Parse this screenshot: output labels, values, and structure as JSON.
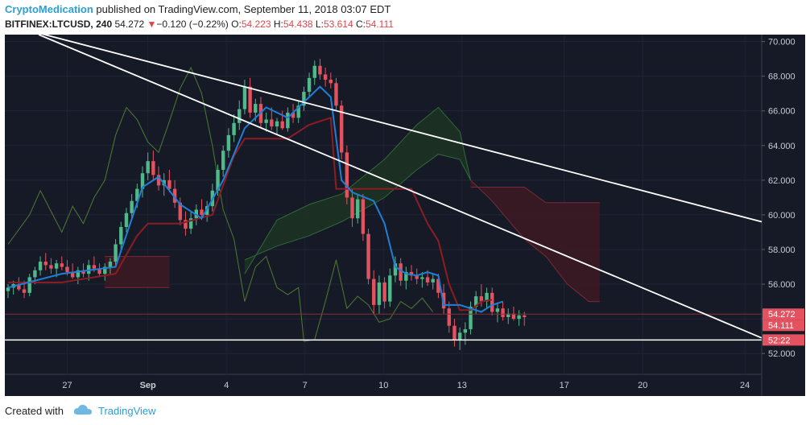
{
  "header": {
    "brand": "CryptoMedication",
    "published_text": "published on TradingView.com, September 11, 2018 03:07 EDT",
    "symbol": "BITFINEX:LTCUSD, 240",
    "last": "54.272",
    "arrow": "▼",
    "change": "−0.120 (−0.22%)",
    "open_label": "O:",
    "open": "54.223",
    "high_label": "H:",
    "high": "54.438",
    "low_label": "L:",
    "low": "53.614",
    "close_label": "C:",
    "close": "54.111"
  },
  "footer": {
    "created_with": "Created with",
    "brand": "TradingView"
  },
  "colors": {
    "background": "#161a27",
    "up": "#4fb98a",
    "down": "#e4525f",
    "base_line": "#1f7fd6",
    "conversion_line": "#8c1d22",
    "cloud_bull": "#1c3322",
    "cloud_bear": "#3b1a24",
    "lagging": "#4f7a32",
    "axis_text": "#c9ccd4",
    "trendline": "#ffffff"
  },
  "chart_data": {
    "type": "candlestick",
    "symbol": "BITFINEX:LTCUSD",
    "timeframe": "240",
    "x_ticks": [
      "27",
      "Sep",
      "4",
      "7",
      "10",
      "13",
      "17",
      "20",
      "24"
    ],
    "y_ticks": [
      "52.000",
      "54.000",
      "56.000",
      "58.000",
      "60.000",
      "62.000",
      "64.000",
      "66.000",
      "68.000",
      "70.000"
    ],
    "ylim": [
      50.8,
      70.4
    ],
    "price_labels": [
      {
        "value": 54.272,
        "text": "54.272",
        "color": "#e4525f"
      },
      {
        "value": 54.111,
        "text": "54.111",
        "color": "#e4525f"
      },
      {
        "value": 52.78,
        "text": "52:22",
        "color": "#e4525f"
      }
    ],
    "support_level": 52.78,
    "current_price_line": 54.272,
    "trendlines": [
      {
        "from": [
          0,
          71.0
        ],
        "to": [
          84.6,
          59.6
        ]
      },
      {
        "from": [
          6.3,
          70.4
        ],
        "to": [
          84.6,
          52.9
        ]
      }
    ],
    "candles": [
      [
        55.6,
        56.0,
        55.2,
        55.8
      ],
      [
        55.8,
        56.2,
        55.4,
        56.0
      ],
      [
        56.0,
        56.4,
        55.6,
        55.7
      ],
      [
        55.7,
        56.2,
        55.2,
        55.5
      ],
      [
        55.5,
        56.6,
        55.3,
        56.4
      ],
      [
        56.4,
        57.0,
        56.0,
        56.8
      ],
      [
        56.8,
        57.6,
        56.5,
        57.3
      ],
      [
        57.3,
        57.8,
        56.8,
        57.1
      ],
      [
        57.1,
        57.5,
        56.6,
        56.9
      ],
      [
        56.9,
        57.4,
        56.4,
        57.2
      ],
      [
        57.2,
        57.6,
        56.8,
        57.0
      ],
      [
        57.0,
        57.4,
        56.5,
        56.7
      ],
      [
        56.7,
        57.2,
        56.3,
        56.4
      ],
      [
        56.4,
        57.0,
        56.0,
        56.8
      ],
      [
        56.8,
        57.2,
        56.4,
        56.6
      ],
      [
        56.6,
        57.4,
        56.2,
        57.1
      ],
      [
        57.1,
        57.6,
        56.7,
        56.9
      ],
      [
        56.9,
        57.2,
        56.4,
        56.6
      ],
      [
        56.6,
        57.2,
        56.2,
        57.0
      ],
      [
        57.0,
        57.5,
        56.6,
        57.3
      ],
      [
        57.3,
        58.6,
        57.0,
        58.3
      ],
      [
        58.3,
        59.6,
        58.0,
        59.3
      ],
      [
        59.3,
        60.4,
        59.0,
        60.1
      ],
      [
        60.1,
        61.2,
        59.7,
        60.8
      ],
      [
        60.8,
        61.8,
        60.4,
        61.5
      ],
      [
        61.5,
        62.8,
        61.0,
        62.4
      ],
      [
        62.4,
        63.6,
        62.0,
        63.1
      ],
      [
        63.1,
        63.7,
        62.0,
        62.3
      ],
      [
        62.3,
        62.8,
        61.4,
        61.7
      ],
      [
        61.7,
        62.4,
        61.1,
        62.0
      ],
      [
        62.0,
        62.6,
        61.3,
        61.5
      ],
      [
        61.5,
        62.0,
        60.4,
        60.7
      ],
      [
        60.7,
        61.0,
        59.4,
        59.7
      ],
      [
        59.7,
        60.2,
        58.8,
        59.2
      ],
      [
        59.2,
        60.2,
        58.9,
        59.8
      ],
      [
        59.8,
        60.6,
        59.4,
        60.3
      ],
      [
        60.3,
        60.9,
        59.7,
        60.0
      ],
      [
        60.0,
        60.8,
        59.6,
        60.5
      ],
      [
        60.5,
        61.8,
        60.2,
        61.4
      ],
      [
        61.4,
        62.9,
        61.1,
        62.6
      ],
      [
        62.6,
        64.0,
        62.2,
        63.7
      ],
      [
        63.7,
        65.0,
        63.3,
        64.6
      ],
      [
        64.6,
        65.8,
        64.2,
        65.3
      ],
      [
        65.3,
        66.6,
        64.9,
        66.1
      ],
      [
        66.1,
        67.8,
        65.8,
        67.4
      ],
      [
        67.4,
        67.9,
        65.6,
        65.9
      ],
      [
        65.9,
        66.7,
        65.4,
        66.4
      ],
      [
        66.4,
        66.8,
        65.0,
        65.3
      ],
      [
        65.3,
        65.9,
        64.8,
        65.5
      ],
      [
        65.5,
        66.2,
        64.9,
        65.1
      ],
      [
        65.1,
        65.6,
        64.6,
        65.4
      ],
      [
        65.4,
        66.0,
        64.9,
        65.0
      ],
      [
        65.0,
        66.2,
        64.8,
        65.9
      ],
      [
        65.9,
        66.4,
        65.3,
        65.6
      ],
      [
        65.6,
        66.6,
        65.3,
        66.3
      ],
      [
        66.3,
        67.4,
        66.0,
        67.1
      ],
      [
        67.1,
        68.2,
        66.8,
        67.9
      ],
      [
        67.9,
        68.9,
        67.5,
        68.6
      ],
      [
        68.6,
        69.0,
        67.8,
        68.1
      ],
      [
        68.1,
        68.5,
        67.4,
        67.8
      ],
      [
        67.8,
        68.2,
        67.3,
        67.6
      ],
      [
        67.6,
        67.9,
        66.0,
        66.3
      ],
      [
        66.3,
        66.6,
        63.2,
        63.6
      ],
      [
        63.6,
        64.0,
        60.6,
        61.0
      ],
      [
        61.0,
        61.5,
        59.3,
        59.8
      ],
      [
        59.8,
        61.2,
        59.5,
        60.9
      ],
      [
        60.9,
        61.2,
        58.5,
        58.9
      ],
      [
        58.9,
        59.2,
        56.0,
        56.3
      ],
      [
        56.3,
        56.8,
        54.3,
        54.8
      ],
      [
        54.8,
        56.5,
        54.3,
        56.1
      ],
      [
        56.1,
        56.4,
        54.6,
        55.0
      ],
      [
        55.0,
        56.9,
        54.7,
        56.5
      ],
      [
        56.5,
        57.6,
        56.1,
        57.2
      ],
      [
        57.2,
        57.5,
        55.9,
        56.2
      ],
      [
        56.2,
        57.0,
        55.7,
        56.7
      ],
      [
        56.7,
        57.1,
        56.2,
        56.5
      ],
      [
        56.5,
        56.9,
        56.0,
        56.3
      ],
      [
        56.3,
        56.7,
        55.8,
        56.4
      ],
      [
        56.4,
        56.8,
        55.9,
        56.1
      ],
      [
        56.1,
        56.6,
        55.7,
        56.3
      ],
      [
        56.3,
        56.6,
        55.2,
        55.5
      ],
      [
        55.5,
        56.0,
        54.3,
        54.6
      ],
      [
        54.6,
        55.0,
        53.2,
        53.6
      ],
      [
        53.6,
        54.0,
        52.4,
        52.8
      ],
      [
        52.8,
        53.5,
        52.2,
        53.2
      ],
      [
        53.2,
        53.8,
        52.5,
        53.4
      ],
      [
        53.4,
        55.0,
        53.1,
        54.7
      ],
      [
        54.7,
        55.6,
        54.3,
        55.3
      ],
      [
        55.3,
        56.0,
        54.7,
        55.0
      ],
      [
        55.0,
        55.8,
        54.6,
        55.5
      ],
      [
        55.5,
        55.8,
        54.2,
        54.4
      ],
      [
        54.4,
        54.9,
        53.8,
        54.6
      ],
      [
        54.6,
        55.0,
        53.9,
        54.1
      ],
      [
        54.1,
        54.6,
        53.7,
        54.3
      ],
      [
        54.3,
        54.7,
        53.9,
        54.0
      ],
      [
        54.0,
        54.5,
        53.6,
        54.2
      ],
      [
        54.2,
        54.4,
        53.6,
        54.1
      ]
    ],
    "base_line": [
      [
        0,
        55.8
      ],
      [
        10,
        56.6
      ],
      [
        20,
        57.0
      ],
      [
        25,
        61.6
      ],
      [
        28,
        62.2
      ],
      [
        32,
        60.6
      ],
      [
        36,
        59.8
      ],
      [
        40,
        62.0
      ],
      [
        44,
        65.0
      ],
      [
        48,
        66.2
      ],
      [
        52,
        65.6
      ],
      [
        56,
        66.8
      ],
      [
        58,
        67.4
      ],
      [
        60,
        66.8
      ],
      [
        62,
        62.0
      ],
      [
        64,
        61.3
      ],
      [
        68,
        60.8
      ],
      [
        70,
        59.5
      ],
      [
        72,
        57.0
      ],
      [
        74,
        56.6
      ],
      [
        76,
        56.5
      ],
      [
        78,
        56.7
      ],
      [
        80,
        56.5
      ],
      [
        81,
        54.8
      ],
      [
        84,
        54.8
      ],
      [
        86,
        54.6
      ],
      [
        88,
        54.4
      ],
      [
        90,
        54.8
      ],
      [
        92,
        55.0
      ]
    ],
    "conversion_line": [
      [
        0,
        56.1
      ],
      [
        10,
        56.1
      ],
      [
        20,
        56.6
      ],
      [
        24,
        58.8
      ],
      [
        26,
        59.5
      ],
      [
        32,
        59.5
      ],
      [
        38,
        60.0
      ],
      [
        42,
        63.4
      ],
      [
        44,
        64.4
      ],
      [
        50,
        64.4
      ],
      [
        52,
        64.4
      ],
      [
        56,
        65.2
      ],
      [
        60,
        65.6
      ],
      [
        61,
        61.5
      ],
      [
        62,
        61.5
      ],
      [
        75,
        61.5
      ],
      [
        78,
        59.5
      ],
      [
        80,
        58.5
      ],
      [
        82,
        56.0
      ],
      [
        84,
        54.5
      ],
      [
        86,
        54.5
      ],
      [
        88,
        55.0
      ],
      [
        90,
        55.1
      ]
    ],
    "cloud": [
      {
        "kind": "bear",
        "top": [
          [
            18,
            57.6
          ],
          [
            30,
            57.6
          ]
        ],
        "bottom": [
          [
            18,
            55.8
          ],
          [
            30,
            55.8
          ]
        ]
      },
      {
        "kind": "bull",
        "top": [
          [
            44,
            56.6
          ],
          [
            50,
            59.7
          ],
          [
            56,
            60.6
          ],
          [
            62,
            61.2
          ],
          [
            70,
            63.2
          ],
          [
            76,
            65.2
          ],
          [
            80,
            66.2
          ],
          [
            84,
            64.8
          ],
          [
            86,
            62.0
          ]
        ],
        "bottom": [
          [
            44,
            57.4
          ],
          [
            50,
            58.2
          ],
          [
            56,
            58.8
          ],
          [
            62,
            59.6
          ],
          [
            70,
            61.0
          ],
          [
            76,
            62.6
          ],
          [
            80,
            63.5
          ],
          [
            84,
            63.2
          ],
          [
            86,
            62.0
          ]
        ]
      },
      {
        "kind": "bear",
        "top": [
          [
            86,
            61.6
          ],
          [
            96,
            61.6
          ],
          [
            100,
            60.7
          ],
          [
            110,
            60.7
          ]
        ],
        "bottom": [
          [
            86,
            62.0
          ],
          [
            90,
            60.8
          ],
          [
            96,
            58.6
          ],
          [
            100,
            57.6
          ],
          [
            104,
            56.0
          ],
          [
            108,
            55.0
          ],
          [
            110,
            55.0
          ]
        ]
      }
    ],
    "lagging_span": [
      [
        0,
        58.3
      ],
      [
        4,
        60.0
      ],
      [
        6,
        61.4
      ],
      [
        8,
        60.2
      ],
      [
        10,
        59.0
      ],
      [
        12,
        60.5
      ],
      [
        14,
        59.5
      ],
      [
        16,
        61.0
      ],
      [
        18,
        62.0
      ],
      [
        20,
        64.6
      ],
      [
        22,
        66.2
      ],
      [
        24,
        65.5
      ],
      [
        26,
        64.2
      ],
      [
        28,
        63.6
      ],
      [
        30,
        65.4
      ],
      [
        32,
        67.3
      ],
      [
        34,
        68.5
      ],
      [
        36,
        67.0
      ],
      [
        38,
        64.0
      ],
      [
        40,
        60.3
      ],
      [
        42,
        58.6
      ],
      [
        44,
        55.0
      ],
      [
        46,
        57.0
      ],
      [
        48,
        57.6
      ],
      [
        50,
        55.8
      ],
      [
        52,
        55.4
      ],
      [
        54,
        55.8
      ],
      [
        55,
        52.7
      ],
      [
        57,
        52.8
      ],
      [
        59,
        55.0
      ],
      [
        61,
        57.4
      ],
      [
        63,
        54.6
      ],
      [
        65,
        55.3
      ],
      [
        67,
        54.8
      ],
      [
        69,
        53.8
      ],
      [
        71,
        54.0
      ],
      [
        73,
        55.0
      ],
      [
        75,
        54.6
      ],
      [
        77,
        55.2
      ],
      [
        79,
        54.4
      ]
    ],
    "x_tick_indices": [
      11,
      26,
      40.6,
      55.2,
      69.8,
      84.4,
      103.4,
      118,
      137
    ]
  }
}
